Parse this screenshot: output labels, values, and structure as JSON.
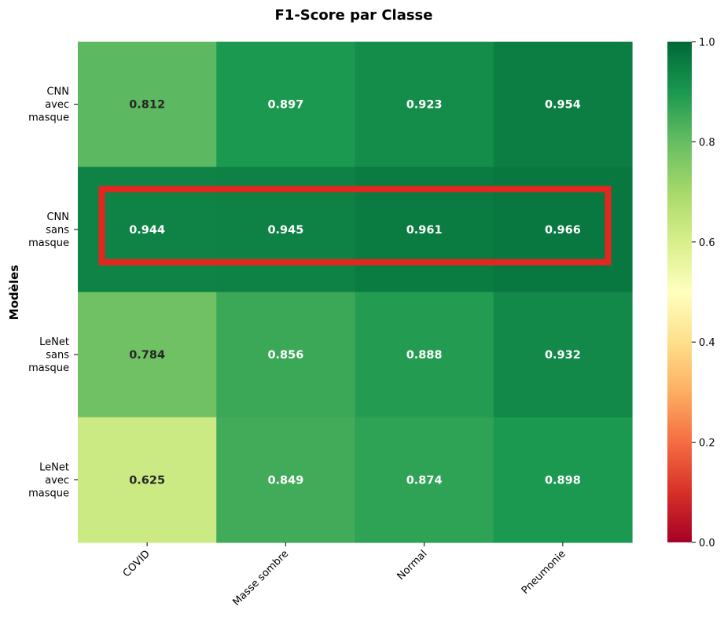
{
  "chart_data": {
    "type": "heatmap",
    "title": "F1-Score par Classe",
    "xlabel": "",
    "ylabel": "Modèles",
    "columns": [
      "COVID",
      "Masse sombre",
      "Normal",
      "Pneumonie"
    ],
    "rows": [
      [
        "CNN",
        "avec",
        "masque"
      ],
      [
        "CNN",
        "sans",
        "masque"
      ],
      [
        "LeNet",
        "sans",
        "masque"
      ],
      [
        "LeNet",
        "avec",
        "masque"
      ]
    ],
    "values": [
      [
        0.812,
        0.897,
        0.923,
        0.954
      ],
      [
        0.944,
        0.945,
        0.961,
        0.966
      ],
      [
        0.784,
        0.856,
        0.888,
        0.932
      ],
      [
        0.625,
        0.849,
        0.874,
        0.898
      ]
    ],
    "value_labels": [
      [
        "0.812",
        "0.897",
        "0.923",
        "0.954"
      ],
      [
        "0.944",
        "0.945",
        "0.961",
        "0.966"
      ],
      [
        "0.784",
        "0.856",
        "0.888",
        "0.932"
      ],
      [
        "0.625",
        "0.849",
        "0.874",
        "0.898"
      ]
    ],
    "colormap": "RdYlGn",
    "vmin": 0.0,
    "vmax": 1.0,
    "colorbar_ticks": [
      "0.0",
      "0.2",
      "0.4",
      "0.6",
      "0.8",
      "1.0"
    ],
    "highlighted_row": 1,
    "highlight_color": "#e3261f"
  }
}
